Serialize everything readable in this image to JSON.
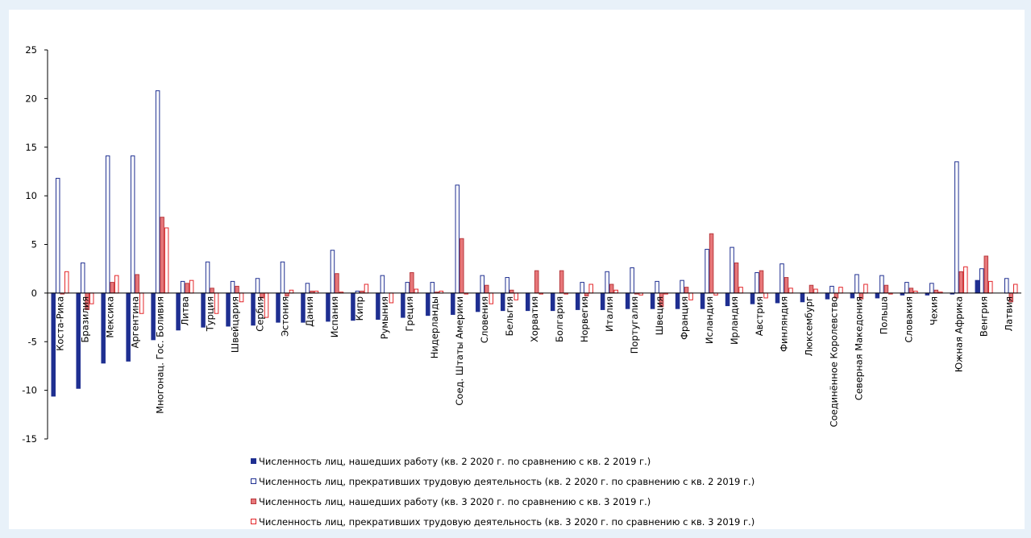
{
  "chart_data": {
    "type": "bar",
    "title": "",
    "xlabel": "",
    "ylabel": "",
    "ylim": [
      -15,
      25
    ],
    "yticks": [
      "-15",
      "-10",
      "-5",
      "0",
      "5",
      "10",
      "15",
      "20",
      "25"
    ],
    "categories": [
      "Коста-Рика",
      "Бразилия",
      "Мексика",
      "Аргентина",
      "Многонац. Гос. Боливия",
      "Литва",
      "Турция",
      "Швейцария",
      "Сербия",
      "Эстония",
      "Дания",
      "Испания",
      "Кипр",
      "Румыния",
      "Греция",
      "Нидерланды",
      "Соед. Штаты Америки",
      "Словения",
      "Бельгия",
      "Хорватия",
      "Болгария",
      "Норвегия",
      "Италия",
      "Португалия",
      "Швеция",
      "Франция",
      "Исландия",
      "Ирландия",
      "Австрия",
      "Финляндия",
      "Люксембург",
      "Соединённое Королевство",
      "Северная Македония",
      "Польша",
      "Словакия",
      "Чехия",
      "Южная Африка",
      "Венгрия",
      "Латвия"
    ],
    "series": [
      {
        "name": "Численность лиц, нашедших работу (кв. 2  2020 г. по сравнению с кв. 2  2019 г.)",
        "color": "#1f2f91",
        "style": "filled",
        "values": [
          -10.6,
          -9.8,
          -7.2,
          -7.0,
          -4.8,
          -3.8,
          -3.5,
          -3.4,
          -3.3,
          -3.0,
          -3.0,
          -2.9,
          -2.8,
          -2.7,
          -2.5,
          -2.3,
          -2.2,
          -1.9,
          -1.8,
          -1.8,
          -1.8,
          -1.7,
          -1.7,
          -1.6,
          -1.6,
          -1.6,
          -1.6,
          -1.3,
          -1.1,
          -1.0,
          -0.9,
          -0.6,
          -0.5,
          -0.5,
          -0.2,
          -0.2,
          -0.1,
          1.3,
          0.0
        ]
      },
      {
        "name": "Численность лиц, прекративших трудовую деятельность  (кв. 2  2020 г. по сравнению с кв. 2  2019 г.)",
        "color": "#1f2f91",
        "style": "outline",
        "values": [
          11.8,
          3.1,
          14.1,
          14.1,
          20.8,
          1.2,
          3.2,
          1.2,
          1.5,
          3.2,
          1.0,
          4.4,
          0.2,
          1.8,
          1.1,
          1.1,
          11.1,
          1.8,
          1.6,
          0.0,
          0.0,
          1.1,
          2.2,
          2.6,
          1.2,
          1.3,
          4.5,
          4.7,
          2.1,
          3.0,
          0.0,
          0.7,
          1.9,
          1.8,
          1.1,
          1.0,
          13.5,
          2.5,
          1.5
        ]
      },
      {
        "name": "Численность лиц, нашедших работу (кв. 3  2020 г. по сравнению с кв. 3  2019 г.)",
        "color": "#e7777a",
        "style": "filled",
        "values": [
          -0.1,
          -1.7,
          1.1,
          1.9,
          7.8,
          1.0,
          0.5,
          0.7,
          -0.5,
          -0.3,
          0.2,
          2.0,
          0.2,
          0.0,
          2.1,
          0.1,
          5.6,
          0.8,
          0.3,
          2.3,
          2.3,
          -0.3,
          0.9,
          -0.1,
          -1.4,
          0.6,
          6.1,
          3.1,
          2.3,
          1.6,
          0.8,
          -0.5,
          -0.6,
          0.8,
          0.5,
          0.3,
          2.2,
          3.8,
          -0.9
        ]
      },
      {
        "name": "Численность лиц, прекративших трудовую деятельность  (кв. 3  2020 г. по сравнению с кв. 3  2019 г.)",
        "color": "#e3262a",
        "style": "outline",
        "values": [
          2.2,
          -1.1,
          1.8,
          -2.1,
          6.7,
          1.3,
          -2.1,
          -0.9,
          -2.5,
          0.3,
          0.2,
          0.1,
          0.9,
          -1.0,
          0.4,
          0.2,
          -0.1,
          -1.1,
          -0.7,
          -0.1,
          -0.1,
          0.9,
          0.3,
          -0.2,
          -0.1,
          -0.7,
          -0.2,
          0.6,
          -0.5,
          0.5,
          0.4,
          0.6,
          0.9,
          -0.1,
          0.2,
          0.1,
          2.7,
          1.2,
          0.9
        ]
      }
    ],
    "legend_position": "bottom",
    "grid": false
  }
}
